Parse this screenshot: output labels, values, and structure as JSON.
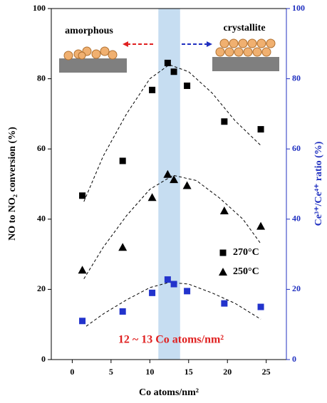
{
  "chart_data": {
    "type": "scatter",
    "x_label": "Co atoms/nm²",
    "y_label": "NO to NO₂ conversion (%)",
    "y2_label": "Ce³⁺/Ce⁴⁺ ratio (%)",
    "annotation": "12 ~ 13 Co atoms/nm²",
    "left_label": "amorphous",
    "right_label": "crystallite",
    "highlight": [
      11.1,
      13.9
    ],
    "xlim": [
      -2.7,
      27.6
    ],
    "xticks": [
      0,
      5,
      10,
      15,
      20,
      25
    ],
    "ylim": [
      0,
      100
    ],
    "yticks": [
      0,
      20,
      40,
      60,
      80,
      100
    ],
    "y2lim": [
      0,
      100
    ],
    "y2ticks": [
      0,
      20,
      40,
      60,
      80,
      100
    ],
    "series": [
      {
        "name": "270°C",
        "marker": "square",
        "color": "#000000",
        "x": [
          1.3,
          6.5,
          10.3,
          12.3,
          13.1,
          14.8,
          19.6,
          24.3
        ],
        "values": [
          46.7,
          56.6,
          76.8,
          84.5,
          82,
          78,
          67.8,
          65.6
        ]
      },
      {
        "name": "250°C",
        "marker": "triangle",
        "color": "#000000",
        "x": [
          1.3,
          6.5,
          10.3,
          12.3,
          13.1,
          14.8,
          19.6,
          24.3
        ],
        "values": [
          25.5,
          32,
          46.2,
          52.8,
          51.3,
          49.6,
          42.4,
          38
        ]
      },
      {
        "marker": "square",
        "color": "#2233cc",
        "axis": "y2",
        "x": [
          1.3,
          6.5,
          10.3,
          12.3,
          13.1,
          14.8,
          19.6,
          24.3
        ],
        "values": [
          11,
          13.7,
          19,
          22.8,
          21.5,
          19.5,
          16,
          15
        ]
      }
    ],
    "fits": [
      {
        "x": [
          1.5,
          4,
          7,
          10,
          12.5,
          15,
          18,
          21,
          24.3
        ],
        "values": [
          45,
          58,
          70,
          80,
          84,
          82,
          76,
          68,
          61
        ]
      },
      {
        "x": [
          1.5,
          4,
          7,
          10,
          13,
          16,
          19,
          22,
          24.3
        ],
        "values": [
          23,
          32,
          41,
          48.5,
          52.5,
          51,
          46,
          40,
          33
        ]
      },
      {
        "x": [
          1.8,
          4,
          7,
          10,
          12.5,
          15,
          18,
          21,
          24.3
        ],
        "values": [
          9.5,
          13,
          17,
          20.5,
          22,
          21.5,
          19,
          16,
          11.5
        ]
      }
    ]
  }
}
